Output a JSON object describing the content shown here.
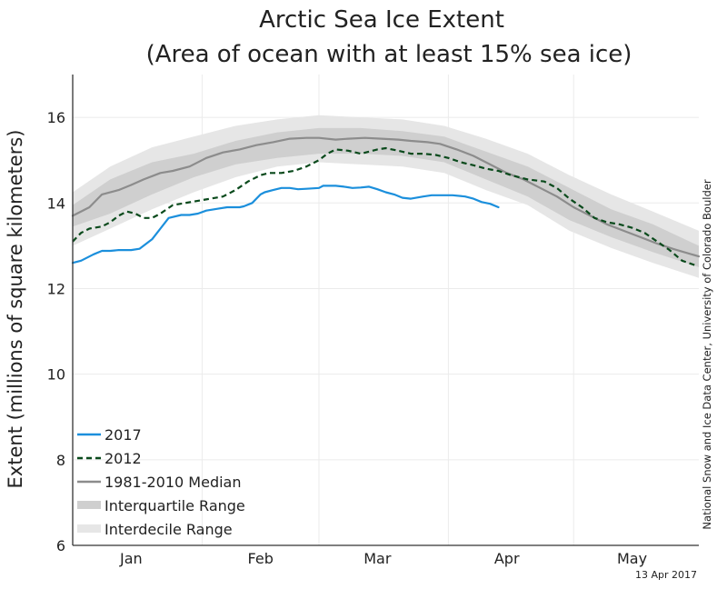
{
  "chart_data": {
    "type": "line",
    "title_line1": "Arctic Sea Ice Extent",
    "title_line2": "(Area of ocean with at least 15% sea ice)",
    "ylabel": "Extent (millions of square kilometers)",
    "ylim": [
      6,
      17
    ],
    "yticks": [
      6,
      8,
      10,
      12,
      14,
      16
    ],
    "xlim": [
      1,
      151
    ],
    "month_labels": [
      {
        "label": "Jan",
        "day": 15
      },
      {
        "label": "Feb",
        "day": 46
      },
      {
        "label": "Mar",
        "day": 74
      },
      {
        "label": "Apr",
        "day": 105
      },
      {
        "label": "May",
        "day": 135
      }
    ],
    "month_boundaries": [
      32,
      60,
      91,
      121
    ],
    "source_text": "National Snow and Ice Data Center, University of Colorado Boulder",
    "date_text": "13 Apr 2017",
    "legend": [
      {
        "label": "2017",
        "key": "s2017"
      },
      {
        "label": "2012",
        "key": "s2012"
      },
      {
        "label": "1981-2010 Median",
        "key": "median"
      },
      {
        "label": "Interquartile Range",
        "key": "iqr"
      },
      {
        "label": "Interdecile Range",
        "key": "idr"
      }
    ],
    "colors": {
      "s2017": "#1b8fdc",
      "s2012": "#0a4a1c",
      "median": "#8c8c8c",
      "iqr": "#cfcfcf",
      "idr": "#e6e6e6",
      "grid": "#ebebeb",
      "axis": "#333333"
    },
    "series": [
      {
        "key": "s2017",
        "name": "2017",
        "x": [
          1,
          3,
          6,
          8,
          10,
          12,
          14,
          15,
          17,
          20,
          22,
          24,
          27,
          29,
          31,
          33,
          36,
          38,
          41,
          42,
          44,
          46,
          47,
          49,
          51,
          53,
          55,
          57,
          60,
          61,
          64,
          66,
          68,
          70,
          72,
          74,
          76,
          78,
          80,
          82,
          85,
          87,
          90,
          92,
          95,
          97,
          99,
          101,
          103
        ],
        "y": [
          12.6,
          12.65,
          12.8,
          12.88,
          12.88,
          12.9,
          12.9,
          12.9,
          12.93,
          13.15,
          13.4,
          13.65,
          13.72,
          13.72,
          13.75,
          13.82,
          13.87,
          13.9,
          13.9,
          13.92,
          14.0,
          14.2,
          14.25,
          14.3,
          14.35,
          14.35,
          14.32,
          14.33,
          14.35,
          14.4,
          14.4,
          14.38,
          14.35,
          14.36,
          14.38,
          14.32,
          14.25,
          14.2,
          14.12,
          14.1,
          14.15,
          14.18,
          14.18,
          14.18,
          14.15,
          14.1,
          14.02,
          13.98,
          13.9
        ]
      },
      {
        "key": "s2012",
        "name": "2012",
        "x": [
          1,
          3,
          5,
          8,
          10,
          12,
          14,
          16,
          18,
          20,
          22,
          25,
          28,
          31,
          34,
          37,
          40,
          43,
          46,
          48,
          51,
          54,
          57,
          60,
          62,
          64,
          67,
          70,
          72,
          74,
          76,
          79,
          82,
          85,
          88,
          91,
          94,
          97,
          100,
          103,
          106,
          110,
          114,
          117,
          120,
          123,
          126,
          129,
          132,
          135,
          138,
          141,
          144,
          147,
          150
        ],
        "y": [
          13.1,
          13.3,
          13.4,
          13.45,
          13.55,
          13.7,
          13.8,
          13.75,
          13.65,
          13.65,
          13.75,
          13.95,
          14.0,
          14.05,
          14.1,
          14.15,
          14.3,
          14.5,
          14.65,
          14.7,
          14.7,
          14.75,
          14.85,
          15.0,
          15.15,
          15.25,
          15.22,
          15.15,
          15.2,
          15.25,
          15.28,
          15.22,
          15.15,
          15.15,
          15.12,
          15.05,
          14.95,
          14.88,
          14.8,
          14.75,
          14.65,
          14.55,
          14.5,
          14.35,
          14.1,
          13.9,
          13.65,
          13.55,
          13.5,
          13.42,
          13.3,
          13.1,
          12.9,
          12.65,
          12.55
        ]
      },
      {
        "key": "median",
        "name": "1981-2010 Median",
        "x": [
          1,
          5,
          8,
          12,
          15,
          18,
          22,
          25,
          29,
          33,
          37,
          41,
          45,
          49,
          53,
          57,
          60,
          64,
          67,
          71,
          75,
          79,
          82,
          86,
          89,
          93,
          97,
          101,
          105,
          109,
          113,
          117,
          121,
          125,
          129,
          133,
          137,
          141,
          145,
          151
        ],
        "y": [
          13.7,
          13.9,
          14.2,
          14.3,
          14.42,
          14.55,
          14.7,
          14.75,
          14.85,
          15.05,
          15.18,
          15.25,
          15.35,
          15.42,
          15.5,
          15.52,
          15.52,
          15.48,
          15.5,
          15.52,
          15.5,
          15.48,
          15.45,
          15.42,
          15.38,
          15.25,
          15.1,
          14.9,
          14.7,
          14.55,
          14.35,
          14.15,
          13.9,
          13.7,
          13.5,
          13.35,
          13.2,
          13.05,
          12.92,
          12.75
        ]
      }
    ],
    "bands": {
      "x": [
        1,
        10,
        20,
        30,
        40,
        50,
        60,
        70,
        80,
        90,
        100,
        110,
        120,
        130,
        140,
        151
      ],
      "iqr_low": [
        13.45,
        13.75,
        14.2,
        14.6,
        14.9,
        15.05,
        15.15,
        15.15,
        15.1,
        14.95,
        14.55,
        14.15,
        13.6,
        13.2,
        12.85,
        12.5
      ],
      "iqr_high": [
        13.95,
        14.55,
        14.95,
        15.15,
        15.45,
        15.65,
        15.75,
        15.75,
        15.68,
        15.55,
        15.2,
        14.85,
        14.35,
        13.85,
        13.5,
        13.0
      ],
      "idr_low": [
        13.0,
        13.4,
        13.85,
        14.25,
        14.6,
        14.85,
        14.95,
        14.9,
        14.85,
        14.7,
        14.3,
        13.95,
        13.35,
        12.95,
        12.6,
        12.25
      ],
      "idr_high": [
        14.25,
        14.85,
        15.3,
        15.55,
        15.8,
        15.95,
        16.05,
        16.0,
        15.95,
        15.8,
        15.5,
        15.15,
        14.65,
        14.2,
        13.8,
        13.35
      ]
    }
  }
}
